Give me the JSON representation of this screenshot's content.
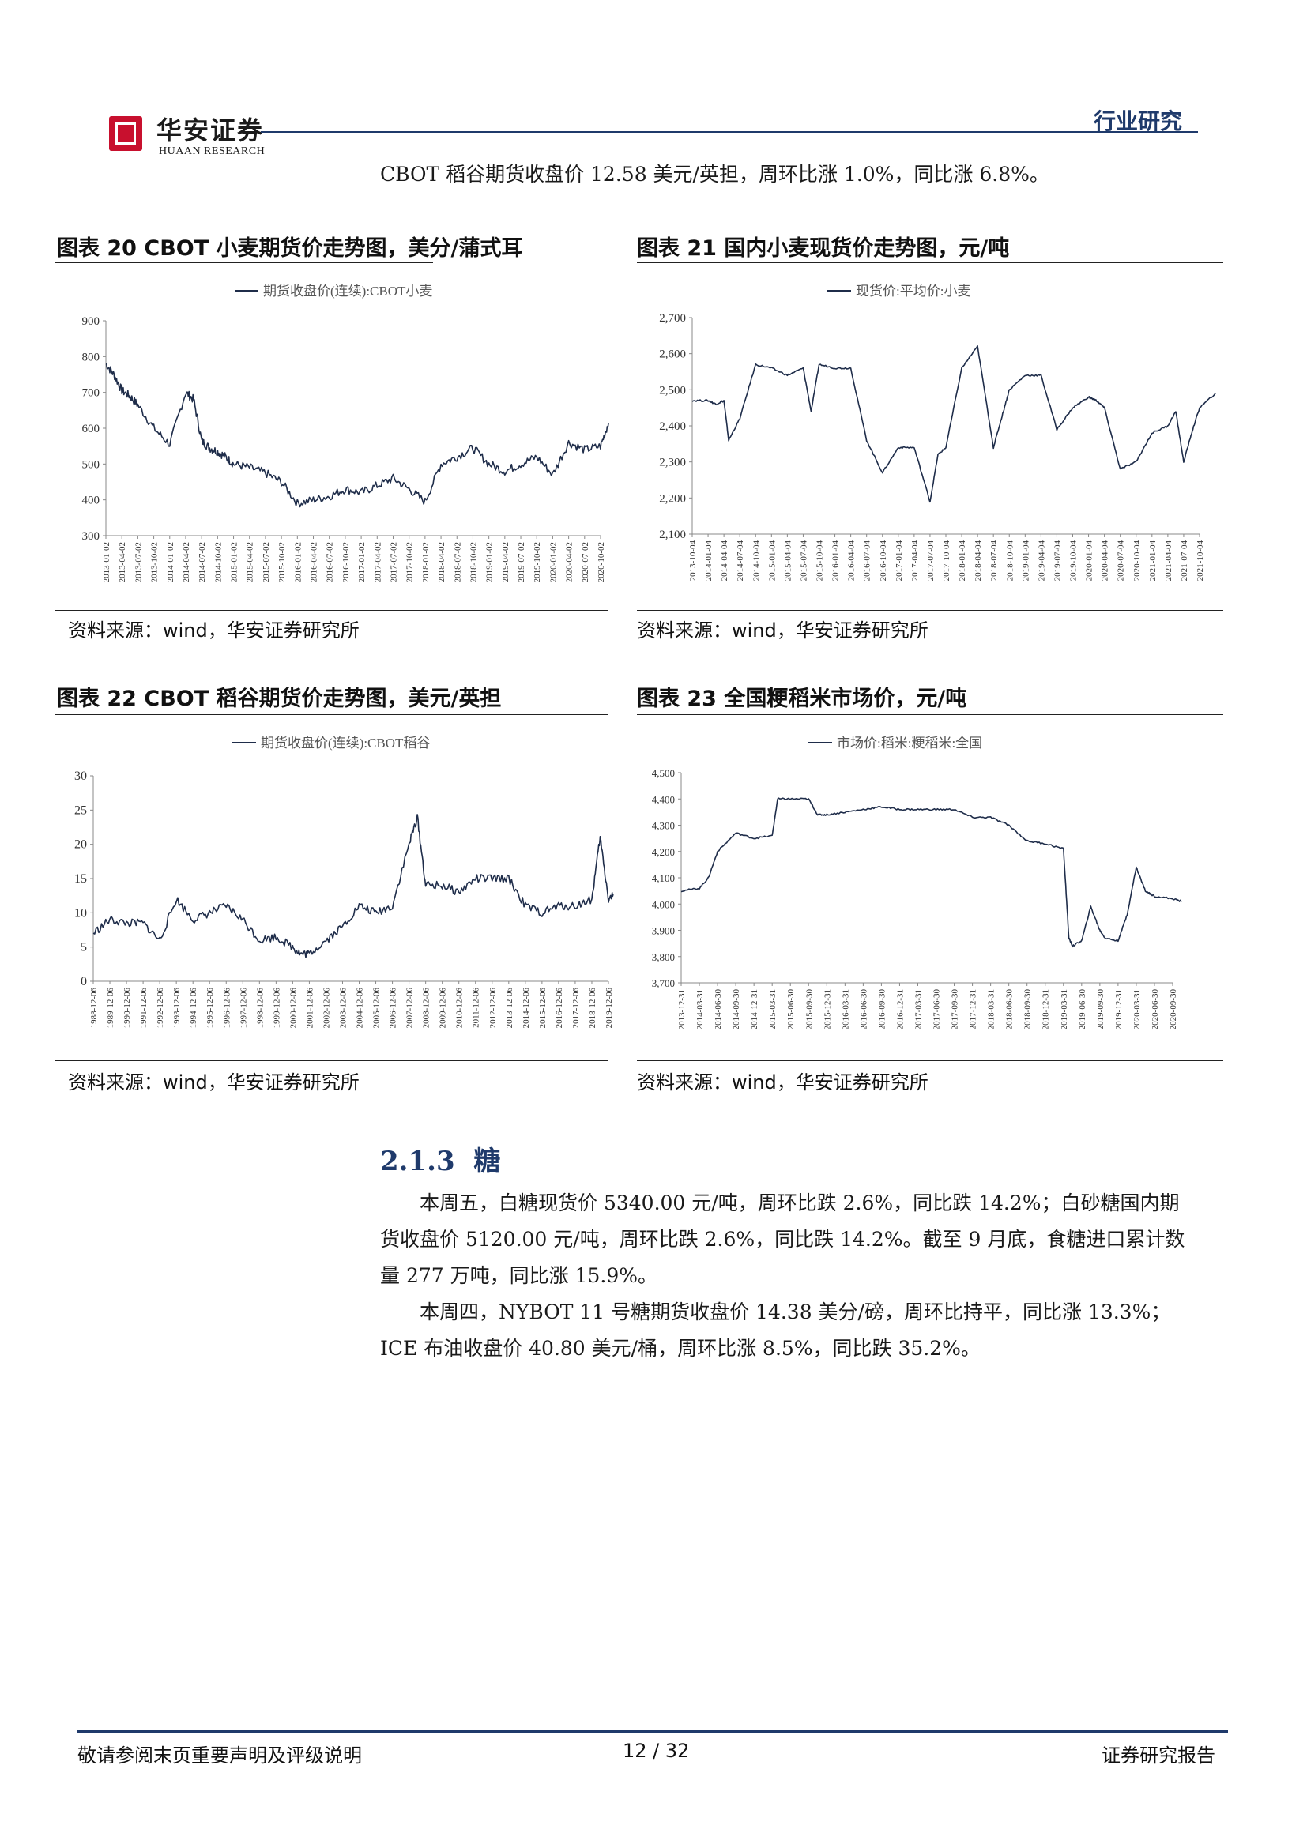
{
  "header": {
    "logo_cn": "华安证券",
    "logo_en": "HUAAN RESEARCH",
    "section_label": "行业研究"
  },
  "intro_line": "CBOT 稻谷期货收盘价 12.58 美元/英担，周环比涨 1.0%，同比涨 6.8%。",
  "charts": [
    {
      "caption": "图表 20 CBOT 小麦期货价走势图，美分/蒲式耳",
      "source": "资料来源：wind，华安证券研究所"
    },
    {
      "caption": "图表 21  国内小麦现货价走势图，元/吨",
      "source": "资料来源：wind，华安证券研究所"
    },
    {
      "caption": "图表 22 CBOT 稻谷期货价走势图，美元/英担",
      "source": "资料来源：wind，华安证券研究所"
    },
    {
      "caption": "图表 23  全国粳稻米市场价，元/吨",
      "source": "资料来源：wind，华安证券研究所"
    }
  ],
  "chart_data": [
    {
      "type": "line",
      "legend": "期货收盘价(连续):CBOT小麦",
      "legend_position": "top-center",
      "ylim": [
        300,
        900
      ],
      "yticks": [
        "900",
        "800",
        "700",
        "600",
        "500",
        "400",
        "300"
      ],
      "xticks": [
        "2013-01-02",
        "2013-04-02",
        "2013-07-02",
        "2013-10-02",
        "2014-01-02",
        "2014-04-02",
        "2014-07-02",
        "2014-10-02",
        "2015-01-02",
        "2015-04-02",
        "2015-07-02",
        "2015-10-02",
        "2016-01-02",
        "2016-04-02",
        "2016-07-02",
        "2016-10-02",
        "2017-01-02",
        "2017-04-02",
        "2017-07-02",
        "2017-10-02",
        "2018-01-02",
        "2018-04-02",
        "2018-07-02",
        "2018-10-02",
        "2019-01-02",
        "2019-04-02",
        "2019-07-02",
        "2019-10-02",
        "2020-01-02",
        "2020-04-02",
        "2020-07-02",
        "2020-10-02"
      ],
      "series": [
        {
          "x": [
            0,
            0.5,
            1,
            1.5,
            2,
            3,
            4,
            5,
            5.5,
            6,
            6.5,
            7,
            7.5,
            8,
            9,
            10,
            11,
            12,
            13,
            14,
            15,
            16,
            17,
            18,
            19,
            20,
            21,
            22,
            23,
            24,
            25,
            26,
            27,
            28,
            29,
            30,
            31,
            31.5
          ],
          "values": [
            780,
            750,
            705,
            690,
            665,
            600,
            555,
            700,
            680,
            565,
            545,
            535,
            520,
            500,
            490,
            475,
            450,
            390,
            400,
            410,
            430,
            420,
            440,
            460,
            430,
            395,
            500,
            520,
            545,
            500,
            480,
            500,
            520,
            470,
            560,
            540,
            550,
            615
          ]
        }
      ]
    },
    {
      "type": "line",
      "legend": "现货价:平均价:小麦",
      "legend_position": "top-center",
      "ylim": [
        2100,
        2700
      ],
      "yticks": [
        "2,700",
        "2,600",
        "2,500",
        "2,400",
        "2,300",
        "2,200",
        "2,100"
      ],
      "xticks": [
        "2013-10-04",
        "2014-01-04",
        "2014-04-04",
        "2014-07-04",
        "2014-10-04",
        "2015-01-04",
        "2015-04-04",
        "2015-07-04",
        "2015-10-04",
        "2016-01-04",
        "2016-04-04",
        "2016-07-04",
        "2016-10-04",
        "2017-01-04",
        "2017-04-04",
        "2017-07-04",
        "2017-10-04",
        "2018-01-04",
        "2018-04-04",
        "2018-07-04",
        "2018-10-04",
        "2019-01-04",
        "2019-04-04",
        "2019-07-04",
        "2019-10-04",
        "2020-01-04",
        "2020-04-04",
        "2020-07-04",
        "2020-10-04",
        "2021-01-04",
        "2021-04-04",
        "2021-07-04",
        "2021-10-04"
      ],
      "series": [
        {
          "x": [
            0,
            1,
            1.5,
            2,
            2.3,
            3,
            4,
            5,
            6,
            7,
            7.5,
            8,
            9,
            10,
            11,
            12,
            13,
            14,
            15,
            15.5,
            16,
            17,
            18,
            19,
            19.5,
            20,
            21,
            22,
            23,
            24,
            25,
            25.5,
            26,
            27,
            28,
            29,
            30,
            30.5,
            31,
            31.5,
            32,
            33
          ],
          "values": [
            2470,
            2470,
            2460,
            2470,
            2360,
            2420,
            2570,
            2560,
            2540,
            2560,
            2440,
            2570,
            2560,
            2560,
            2360,
            2270,
            2340,
            2340,
            2190,
            2320,
            2340,
            2560,
            2620,
            2340,
            2420,
            2500,
            2540,
            2540,
            2390,
            2450,
            2480,
            2470,
            2450,
            2280,
            2300,
            2380,
            2400,
            2440,
            2300,
            2380,
            2450,
            2490
          ]
        }
      ]
    },
    {
      "type": "line",
      "legend": "期货收盘价(连续):CBOT稻谷",
      "legend_position": "top-center",
      "ylim": [
        0,
        30
      ],
      "yticks": [
        "30",
        "25",
        "20",
        "15",
        "10",
        "5",
        "0"
      ],
      "xticks": [
        "1988-12-06",
        "1989-12-06",
        "1990-12-06",
        "1991-12-06",
        "1992-12-06",
        "1993-12-06",
        "1994-12-06",
        "1995-12-06",
        "1996-12-06",
        "1997-12-06",
        "1998-12-06",
        "1999-12-06",
        "2000-12-06",
        "2001-12-06",
        "2002-12-06",
        "2003-12-06",
        "2004-12-06",
        "2005-12-06",
        "2006-12-06",
        "2007-12-06",
        "2008-12-06",
        "2009-12-06",
        "2010-12-06",
        "2011-12-06",
        "2012-12-06",
        "2013-12-06",
        "2014-12-06",
        "2015-12-06",
        "2016-12-06",
        "2017-12-06",
        "2018-12-06",
        "2019-12-06"
      ],
      "series": [
        {
          "x": [
            0,
            1,
            2,
            3,
            4,
            5,
            6,
            7,
            8,
            9,
            10,
            11,
            12,
            12.5,
            13,
            14,
            15,
            16,
            17,
            18,
            19,
            19.5,
            20,
            21,
            22,
            23,
            24,
            25,
            26,
            27,
            28,
            29,
            30,
            30.5,
            31,
            31.3
          ],
          "values": [
            7,
            9,
            8.5,
            8.5,
            6,
            12,
            9,
            10,
            11,
            9,
            6,
            6.5,
            5,
            4,
            4,
            6,
            8,
            11,
            10,
            11,
            20,
            24,
            14,
            14,
            13,
            15,
            15,
            15,
            11,
            10,
            11,
            11,
            12,
            21,
            12,
            12.6
          ]
        }
      ]
    },
    {
      "type": "line",
      "legend": "市场价:稻米:粳稻米:全国",
      "legend_position": "top-center",
      "ylim": [
        3700,
        4500
      ],
      "yticks": [
        "4,500",
        "4,400",
        "4,300",
        "4,200",
        "4,100",
        "4,000",
        "3,900",
        "3,800",
        "3,700"
      ],
      "xticks": [
        "2013-12-31",
        "2014-03-31",
        "2014-06-30",
        "2014-09-30",
        "2014-12-31",
        "2015-03-31",
        "2015-06-30",
        "2015-09-30",
        "2015-12-31",
        "2016-03-31",
        "2016-06-30",
        "2016-09-30",
        "2016-12-31",
        "2017-03-31",
        "2017-06-30",
        "2017-09-30",
        "2017-12-31",
        "2018-03-31",
        "2018-06-30",
        "2018-09-30",
        "2018-12-31",
        "2019-03-31",
        "2019-06-30",
        "2019-09-30",
        "2019-12-31",
        "2020-03-31",
        "2020-06-30",
        "2020-09-30"
      ],
      "series": [
        {
          "x": [
            0,
            1,
            1.5,
            2,
            3,
            4,
            5,
            5.3,
            6,
            7,
            7.5,
            8,
            9,
            10,
            11,
            12,
            13,
            14,
            15,
            16,
            17,
            18,
            19,
            20,
            21,
            21.3,
            21.5,
            22,
            22.5,
            23,
            23.3,
            24,
            24.5,
            25,
            25.5,
            26,
            27,
            27.5
          ],
          "values": [
            4050,
            4060,
            4100,
            4200,
            4270,
            4250,
            4260,
            4400,
            4400,
            4400,
            4340,
            4340,
            4350,
            4360,
            4370,
            4360,
            4360,
            4360,
            4360,
            4330,
            4330,
            4300,
            4240,
            4230,
            4210,
            3870,
            3840,
            3860,
            3990,
            3900,
            3870,
            3860,
            3960,
            4140,
            4050,
            4030,
            4020,
            4010
          ]
        }
      ]
    }
  ],
  "section": {
    "number": "2.1.3",
    "title": "糖"
  },
  "paragraphs": [
    [
      "本周五，白糖现货价 5340.00 元/吨，周环比跌 2.6%，同比跌 14.2%；白砂糖国内期",
      "货收盘价 5120.00 元/吨，周环比跌 2.6%，同比跌 14.2%。截至 9 月底，食糖进口累计数",
      "量 277 万吨，同比涨 15.9%。"
    ],
    [
      "本周四，NYBOT 11 号糖期货收盘价 14.38 美分/磅，周环比持平，同比涨 13.3%；",
      "ICE 布油收盘价 40.80 美元/桶，周环比涨 8.5%，同比跌 35.2%。"
    ]
  ],
  "footer": {
    "left": "敬请参阅末页重要声明及评级说明",
    "page": "12 / 32",
    "right": "证券研究报告"
  },
  "colors": {
    "brand_blue": "#1f3a6b",
    "logo_red": "#c8102e",
    "series_line": "#1f2d4a"
  }
}
